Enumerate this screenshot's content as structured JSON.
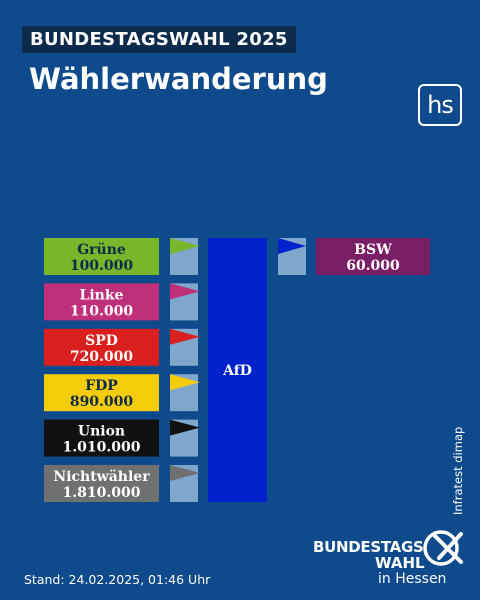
{
  "header": {
    "tag": "BUNDESTAGSWAHL 2025",
    "title": "Wählerwanderung",
    "logo": "hs"
  },
  "source": "Infratest dimap",
  "stand": "Stand: 24.02.2025, 01:46 Uhr",
  "brand": {
    "line1": "BUNDESTAGS",
    "line2": "WAHL",
    "line3": "in Hessen",
    "icon": "check-x-ballot-icon"
  },
  "colors": {
    "background": "#0e4a8c",
    "afd": "#0022cc",
    "connector": "#7fa7cc"
  },
  "chart_data": {
    "type": "bar",
    "title": "Wählerwanderung",
    "target": "AfD",
    "inflows": [
      {
        "name": "Grüne",
        "value": 100000,
        "label": "100.000",
        "color": "#78b62a",
        "text_color": "#0b2a4c"
      },
      {
        "name": "Linke",
        "value": 110000,
        "label": "110.000",
        "color": "#c0307a",
        "text_color": "#ffffff"
      },
      {
        "name": "SPD",
        "value": 720000,
        "label": "720.000",
        "color": "#d9201e",
        "text_color": "#ffffff"
      },
      {
        "name": "FDP",
        "value": 890000,
        "label": "890.000",
        "color": "#f5cc0a",
        "text_color": "#0b2a4c"
      },
      {
        "name": "Union",
        "value": 1010000,
        "label": "1.010.000",
        "color": "#111111",
        "text_color": "#ffffff"
      },
      {
        "name": "Nichtwähler",
        "value": 1810000,
        "label": "1.810.000",
        "color": "#707070",
        "text_color": "#ffffff"
      }
    ],
    "outflows": [
      {
        "name": "BSW",
        "value": 60000,
        "label": "60.000",
        "color": "#7a1f66",
        "text_color": "#ffffff"
      }
    ]
  }
}
